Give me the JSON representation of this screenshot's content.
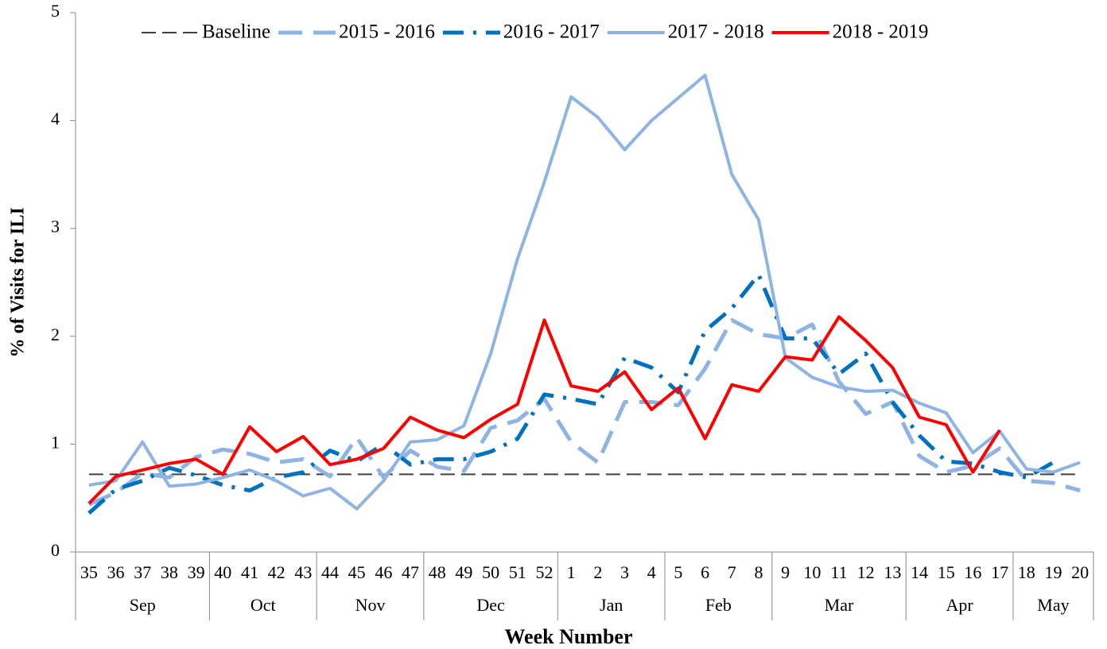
{
  "chart_data": {
    "type": "line",
    "y_label": "% of Visits for ILI",
    "x_label": "Week Number",
    "category_groups": [
      {
        "name": "Sep",
        "categories": [
          "35",
          "36",
          "37",
          "38",
          "39"
        ]
      },
      {
        "name": "Oct",
        "categories": [
          "40",
          "41",
          "42",
          "43"
        ]
      },
      {
        "name": "Nov",
        "categories": [
          "44",
          "45",
          "46",
          "47"
        ]
      },
      {
        "name": "Dec",
        "categories": [
          "48",
          "49",
          "50",
          "51",
          "52"
        ]
      },
      {
        "name": "Jan",
        "categories": [
          "1",
          "2",
          "3",
          "4"
        ]
      },
      {
        "name": "Feb",
        "categories": [
          "5",
          "6",
          "7",
          "8"
        ]
      },
      {
        "name": "Mar",
        "categories": [
          "9",
          "10",
          "11",
          "12",
          "13"
        ]
      },
      {
        "name": "Apr",
        "categories": [
          "14",
          "15",
          "16",
          "17"
        ]
      },
      {
        "name": "May",
        "categories": [
          "18",
          "19",
          "20"
        ]
      }
    ],
    "ylim": [
      0,
      5
    ],
    "yticks": [
      0,
      1,
      2,
      3,
      4,
      5
    ],
    "legend": "top",
    "series": [
      {
        "name": "Baseline",
        "color": "#404040",
        "dash": "dashed",
        "width": 2,
        "values": [
          0.72,
          0.72,
          0.72,
          0.72,
          0.72,
          0.72,
          0.72,
          0.72,
          0.72,
          0.72,
          0.72,
          0.72,
          0.72,
          0.72,
          0.72,
          0.72,
          0.72,
          0.72,
          0.72,
          0.72,
          0.72,
          0.72,
          0.72,
          0.72,
          0.72,
          0.72,
          0.72,
          0.72,
          0.72,
          0.72,
          0.72,
          0.72,
          0.72,
          0.72,
          0.72,
          0.72,
          0.72,
          0.72
        ]
      },
      {
        "name": "2015 - 2016",
        "color": "#8eb4e3",
        "dash": "long-dash",
        "width": 5,
        "values": [
          0.44,
          0.55,
          0.73,
          0.69,
          0.88,
          0.95,
          0.91,
          0.83,
          0.86,
          0.7,
          1.06,
          0.69,
          0.94,
          0.79,
          0.75,
          1.15,
          1.22,
          1.42,
          1.02,
          0.83,
          1.39,
          1.39,
          1.36,
          1.7,
          2.15,
          2.02,
          1.98,
          2.11,
          1.58,
          1.28,
          1.39,
          0.89,
          0.74,
          0.8,
          0.96,
          0.66,
          0.64,
          0.57
        ]
      },
      {
        "name": "2016 - 2017",
        "color": "#0070c0",
        "dash": "dash-dot",
        "width": 5,
        "values": [
          0.36,
          0.58,
          0.66,
          0.78,
          0.71,
          0.62,
          0.57,
          0.69,
          0.74,
          0.94,
          0.84,
          1.0,
          0.81,
          0.86,
          0.86,
          0.93,
          1.05,
          1.46,
          1.42,
          1.37,
          1.8,
          1.71,
          1.48,
          2.05,
          2.26,
          2.57,
          1.98,
          1.98,
          1.65,
          1.84,
          1.39,
          1.08,
          0.84,
          0.82,
          0.74,
          0.69,
          0.83,
          null
        ]
      },
      {
        "name": "2017 - 2018",
        "color": "#8eb4e3",
        "dash": "solid",
        "width": 4,
        "values": [
          0.62,
          0.66,
          1.02,
          0.61,
          0.63,
          0.69,
          0.76,
          0.66,
          0.52,
          0.59,
          0.4,
          0.66,
          1.02,
          1.04,
          1.17,
          1.84,
          2.72,
          3.43,
          4.22,
          4.03,
          3.73,
          4.0,
          4.21,
          4.42,
          3.5,
          3.08,
          1.8,
          1.62,
          1.53,
          1.49,
          1.5,
          1.38,
          1.29,
          0.92,
          1.12,
          0.77,
          0.74,
          0.83
        ]
      },
      {
        "name": "2018 - 2019",
        "color": "#ff0000",
        "dash": "solid",
        "width": 4,
        "values": [
          0.45,
          0.7,
          0.76,
          0.82,
          0.86,
          0.72,
          1.16,
          0.93,
          1.07,
          0.81,
          0.86,
          0.96,
          1.25,
          1.13,
          1.06,
          1.23,
          1.37,
          2.15,
          1.54,
          1.49,
          1.67,
          1.32,
          1.52,
          1.05,
          1.55,
          1.49,
          1.81,
          1.78,
          2.18,
          1.96,
          1.71,
          1.25,
          1.18,
          0.74,
          1.13,
          null,
          null,
          null
        ]
      }
    ]
  }
}
